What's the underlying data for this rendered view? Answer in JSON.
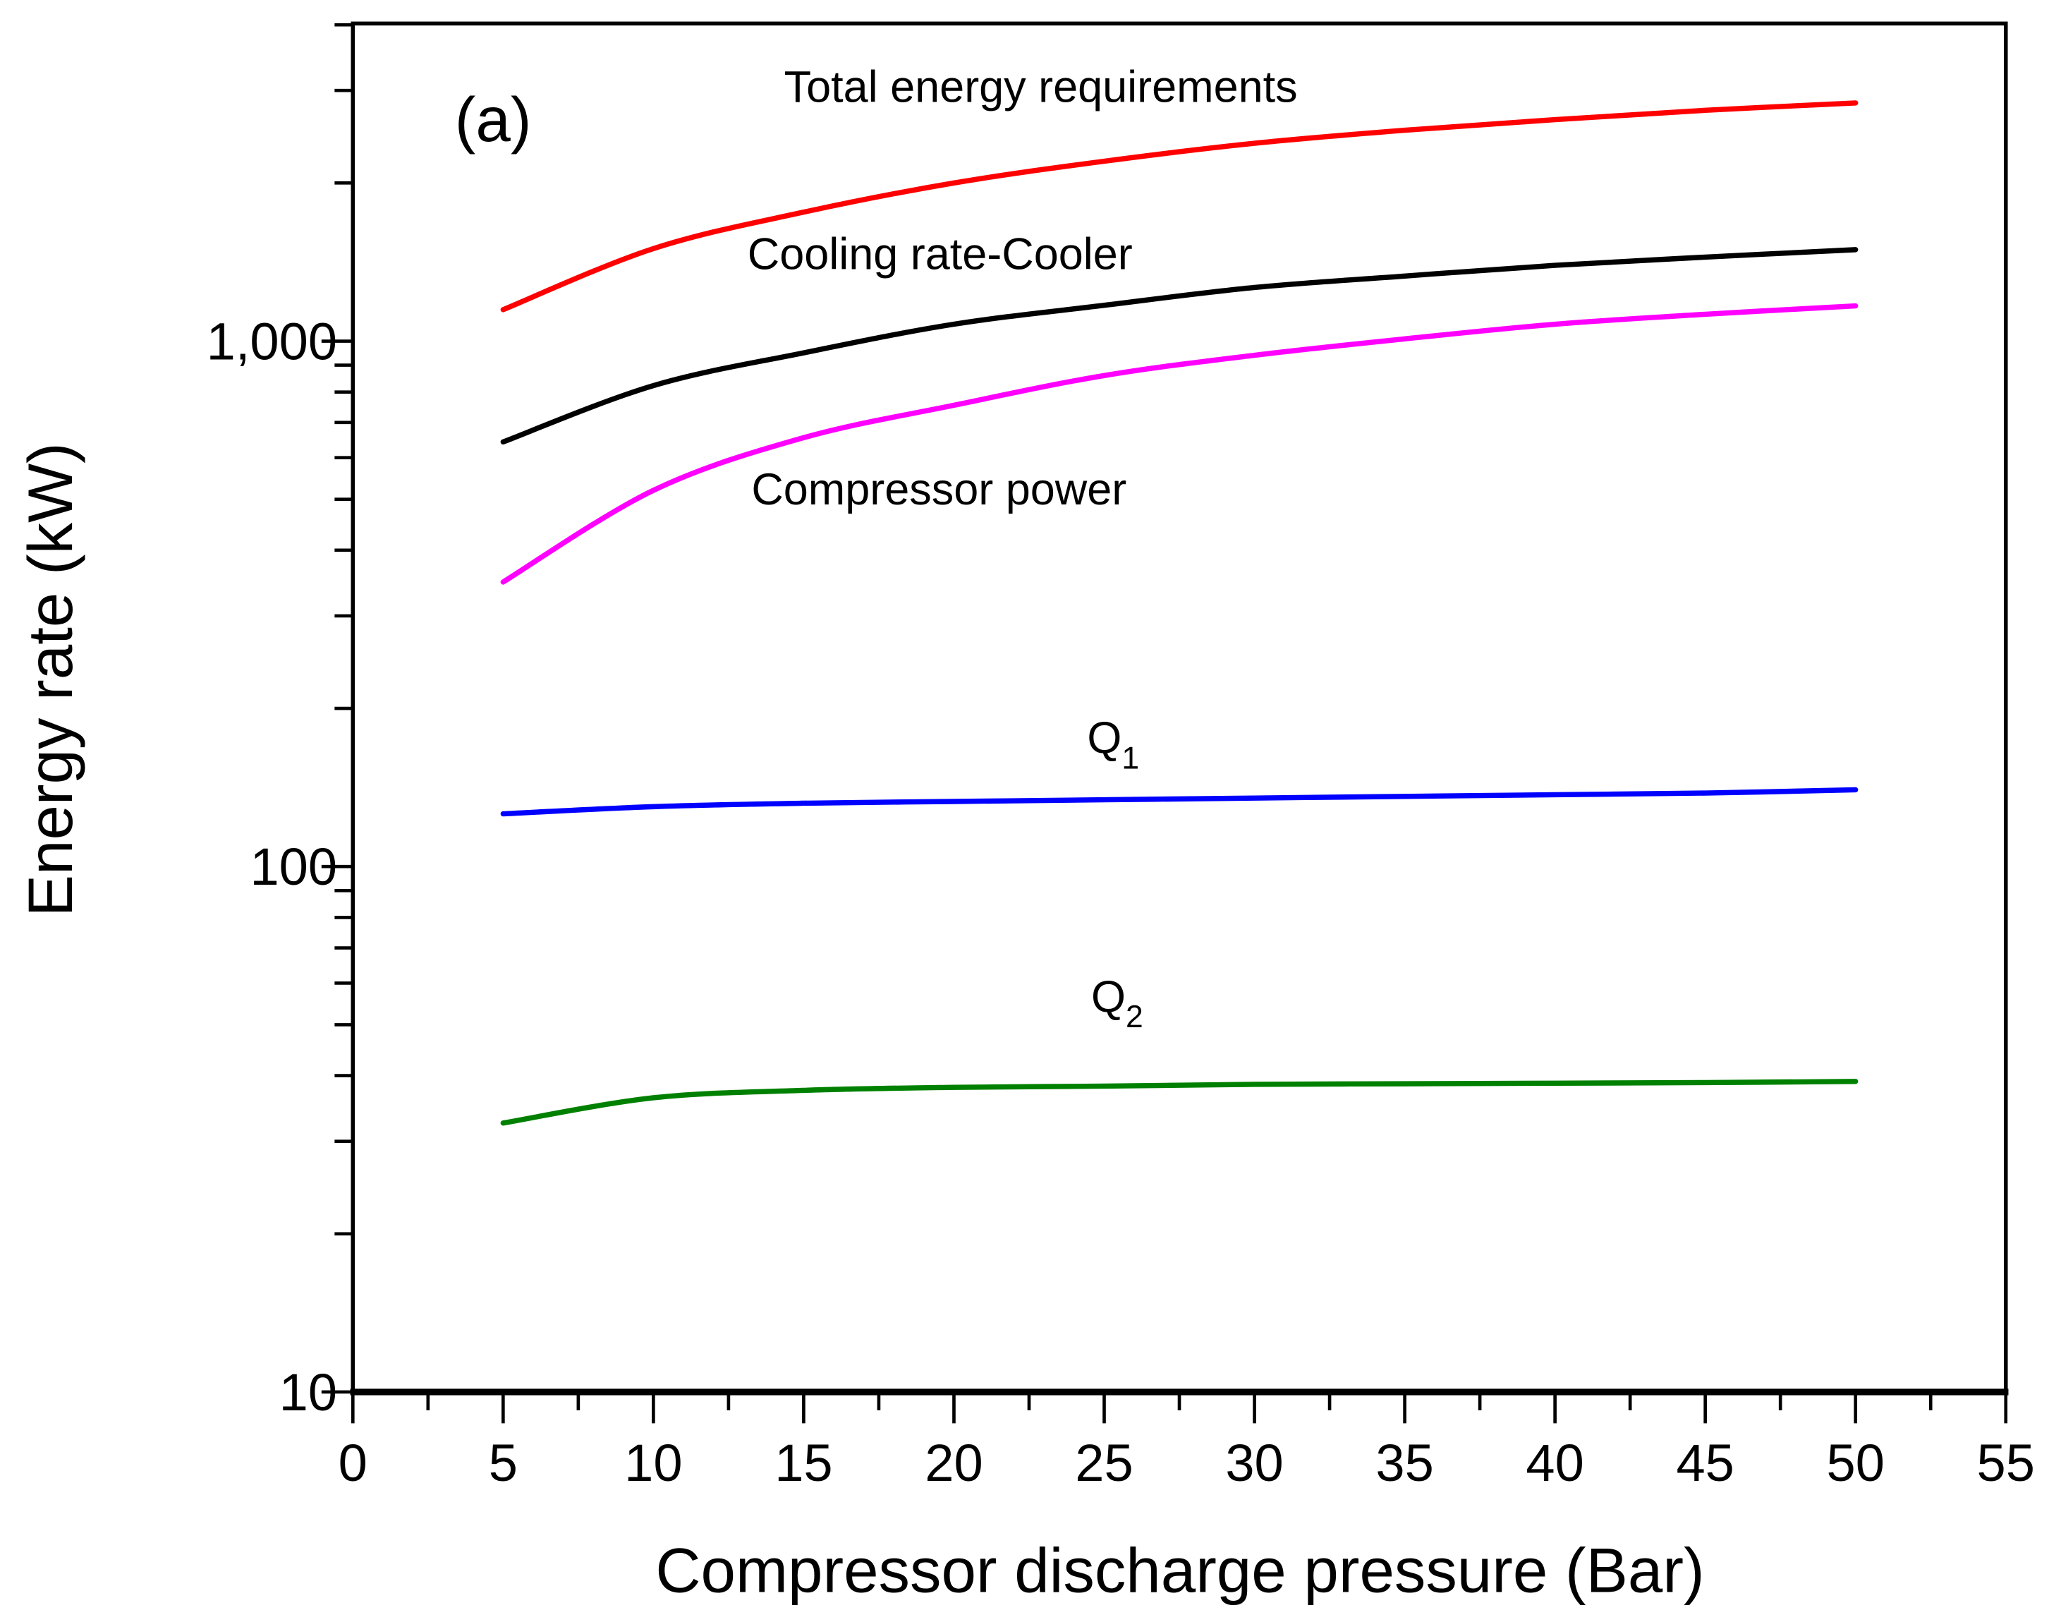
{
  "chart_data": {
    "type": "line",
    "panel_label": "(a)",
    "xlabel": "Compressor discharge pressure (Bar)",
    "ylabel": "Energy rate (kW)",
    "xlim": [
      0,
      55
    ],
    "ylim": [
      10,
      4000
    ],
    "yscale": "log",
    "grid": false,
    "x_ticks": [
      "0",
      "5",
      "10",
      "15",
      "20",
      "25",
      "30",
      "35",
      "40",
      "45",
      "50",
      "55"
    ],
    "y_ticks": [
      {
        "value": 10,
        "label": "10"
      },
      {
        "value": 100,
        "label": "100"
      },
      {
        "value": 1000,
        "label": "1,000"
      }
    ],
    "x": [
      5,
      10,
      15,
      20,
      25,
      30,
      35,
      40,
      45,
      50
    ],
    "series": [
      {
        "name": "Total energy requirements",
        "color": "#ff0000",
        "values": [
          1148,
          1500,
          1760,
          2000,
          2200,
          2380,
          2520,
          2640,
          2750,
          2840
        ]
      },
      {
        "name": "Cooling rate-Cooler",
        "color": "#000000",
        "values": [
          643,
          823,
          950,
          1077,
          1170,
          1265,
          1330,
          1394,
          1445,
          1493
        ]
      },
      {
        "name": "Compressor power",
        "color": "#ff00ff",
        "values": [
          348,
          520,
          655,
          755,
          860,
          940,
          1010,
          1077,
          1125,
          1167
        ]
      },
      {
        "name": "Q",
        "subscript": "1",
        "color": "#0000ff",
        "values": [
          126,
          130,
          132,
          133,
          134,
          135,
          136,
          137,
          138,
          140
        ]
      },
      {
        "name": "Q",
        "subscript": "2",
        "color": "#008000",
        "values": [
          32.5,
          36.3,
          37.5,
          38,
          38.2,
          38.5,
          38.6,
          38.7,
          38.8,
          39
        ]
      }
    ]
  }
}
